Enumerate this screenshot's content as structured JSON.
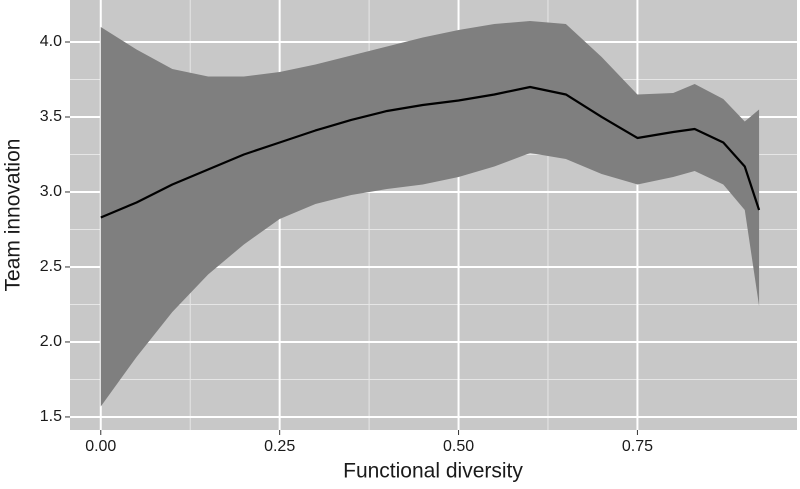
{
  "chart_data": {
    "type": "smooth",
    "x_label": "Functional diversity",
    "y_label": "Team innovation",
    "x": [
      0,
      0.05,
      0.1,
      0.15,
      0.2,
      0.25,
      0.3,
      0.35,
      0.4,
      0.45,
      0.5,
      0.55,
      0.6,
      0.65,
      0.7,
      0.75,
      0.8,
      0.83,
      0.87,
      0.9,
      0.92
    ],
    "values": [
      2.83,
      2.93,
      3.05,
      3.15,
      3.25,
      3.33,
      3.41,
      3.48,
      3.54,
      3.58,
      3.61,
      3.65,
      3.7,
      3.65,
      3.5,
      3.36,
      3.4,
      3.42,
      3.33,
      3.17,
      2.88
    ],
    "lower": [
      1.57,
      1.9,
      2.2,
      2.45,
      2.65,
      2.82,
      2.92,
      2.98,
      3.02,
      3.05,
      3.1,
      3.17,
      3.26,
      3.22,
      3.12,
      3.05,
      3.1,
      3.14,
      3.05,
      2.88,
      2.24
    ],
    "upper": [
      4.1,
      3.95,
      3.82,
      3.77,
      3.77,
      3.8,
      3.85,
      3.91,
      3.97,
      4.03,
      4.08,
      4.12,
      4.14,
      4.12,
      3.9,
      3.65,
      3.66,
      3.72,
      3.62,
      3.47,
      3.55
    ],
    "color": "#000000",
    "band_color": "#7f7f7f",
    "panel_color": "#c8c8c8",
    "grid": true,
    "xlim": [
      -0.043,
      0.973
    ],
    "ylim": [
      1.413,
      4.28
    ],
    "xticks": [
      {
        "value": 0,
        "label": "0.00"
      },
      {
        "value": 0.25,
        "label": "0.25"
      },
      {
        "value": 0.5,
        "label": "0.50"
      },
      {
        "value": 0.75,
        "label": "0.75"
      }
    ],
    "yticks": [
      1.5,
      {
        "value": 2,
        "label": "2.0"
      },
      2.5,
      {
        "value": 3,
        "label": "3.0"
      },
      3.5,
      {
        "value": 4,
        "label": "4.0"
      }
    ]
  }
}
